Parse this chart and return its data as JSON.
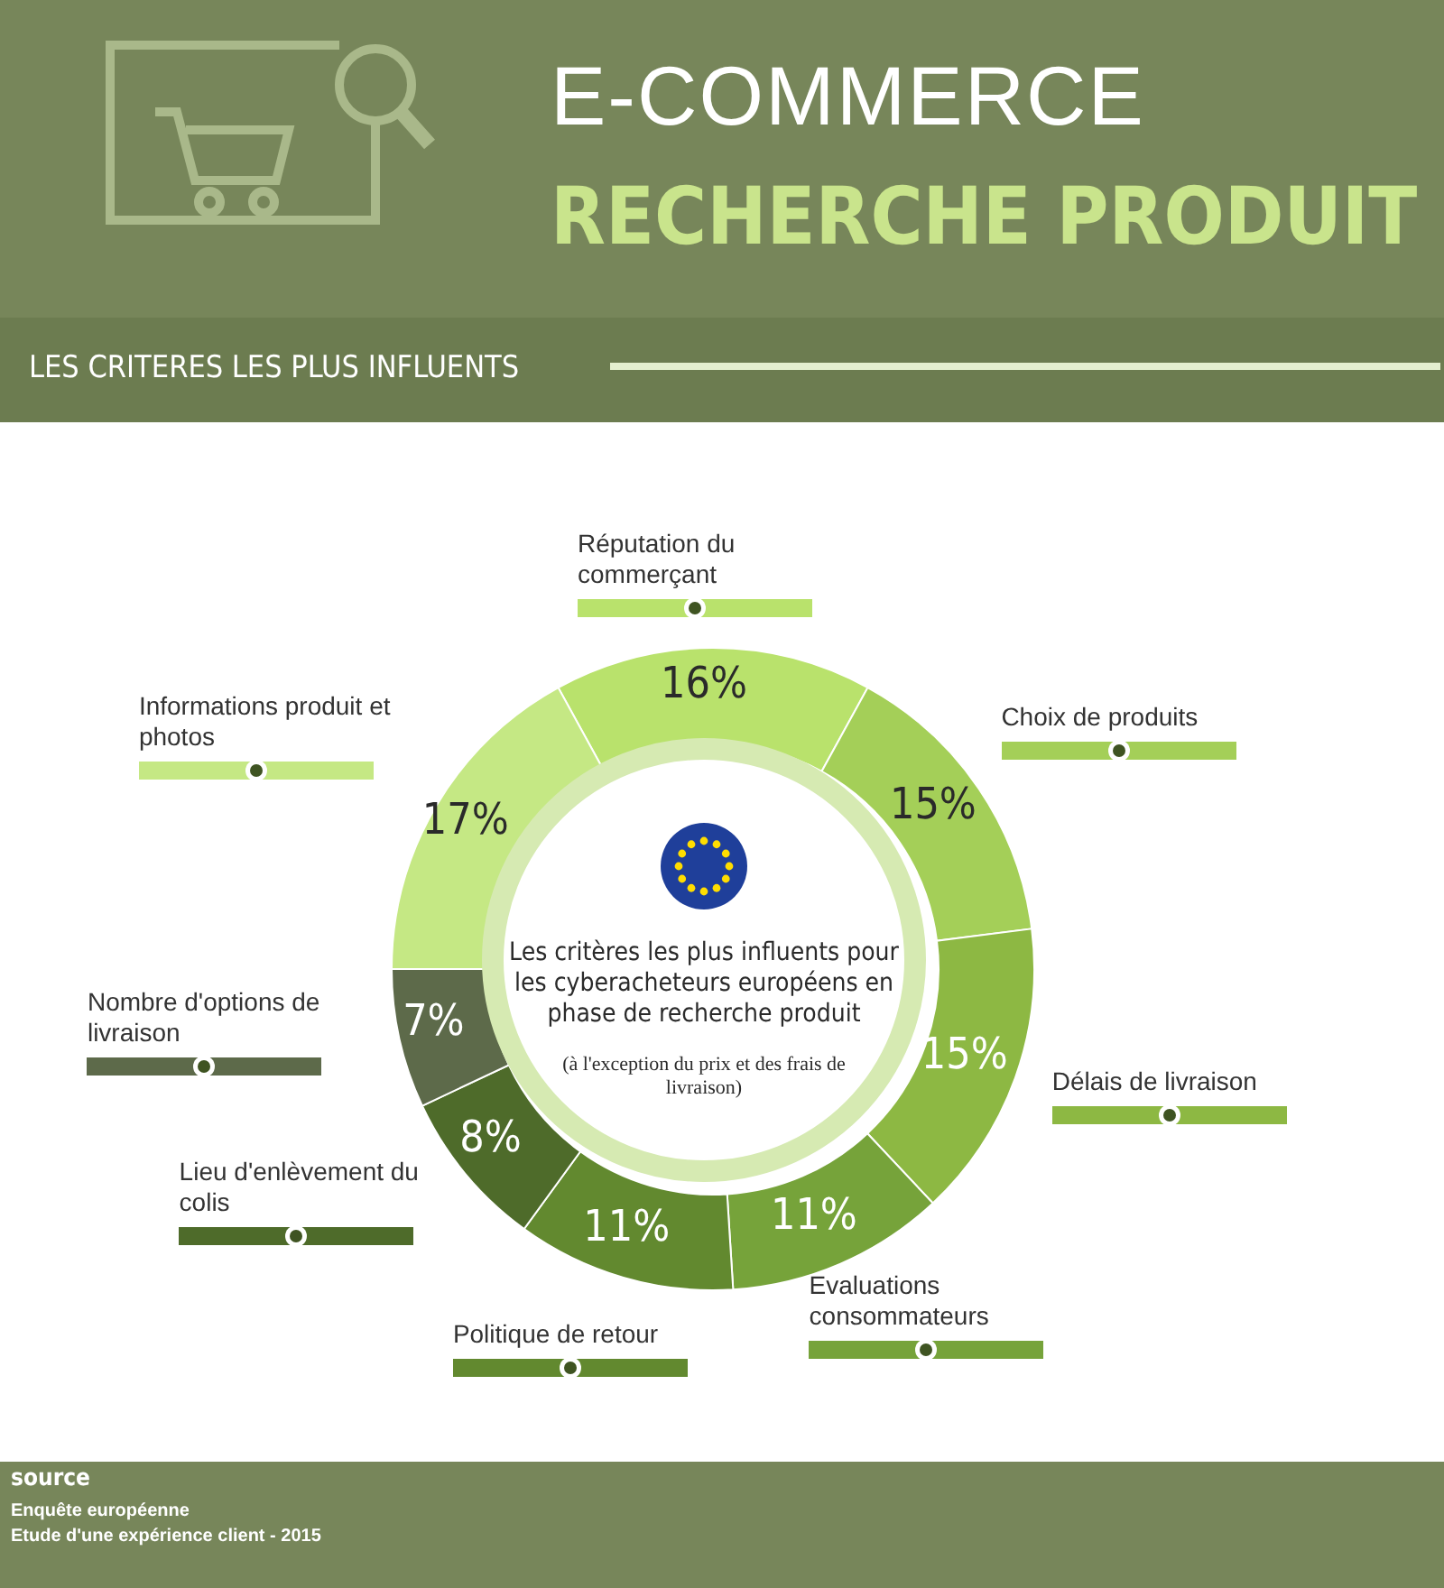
{
  "chart_data": {
    "type": "donut",
    "title": "E-COMMERCE",
    "subtitle": "RECHERCHE PRODUIT",
    "categories": [
      "Réputation du commerçant",
      "Choix de produits",
      "Délais de livraison",
      "Evaluations consommateurs",
      "Politique de retour",
      "Lieu d'enlèvement du colis",
      "Nombre d'options de livraison",
      "Informations produit et photos"
    ],
    "values": [
      16,
      15,
      15,
      11,
      11,
      8,
      7,
      17
    ],
    "value_labels": [
      "16%",
      "15%",
      "15%",
      "11%",
      "11%",
      "8%",
      "7%",
      "17%"
    ],
    "colors": [
      "#b9e26c",
      "#a4cf58",
      "#8db843",
      "#76a33a",
      "#62892f",
      "#4e6b2a",
      "#5d6a4a",
      "#c5e884"
    ],
    "annotations": [
      "LES CRITERES LES PLUS INFLUENTS",
      "Les critères les plus influents pour les cyberacheteurs européens en phase de recherche produit",
      "(à l'exception du prix et des frais de livraison)",
      "source",
      "Enquête européenne",
      "Etude d'une expérience client - 2015"
    ]
  }
}
